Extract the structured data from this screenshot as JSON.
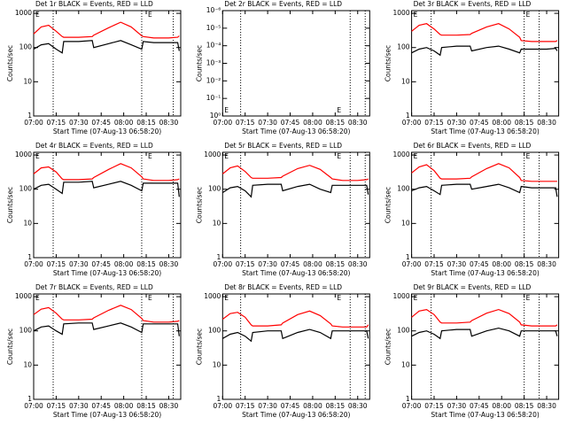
{
  "chart_data": [
    {
      "type": "line",
      "title": "Det 1r BLACK = Events, RED = LLD",
      "xlabel": "Start Time (07-Aug-13 06:58:20)",
      "ylabel": "Counts/sec",
      "log_y": true,
      "x": [
        "07:00",
        "07:05",
        "07:10",
        "07:15",
        "07:19",
        "07:20",
        "07:30",
        "07:39",
        "07:40",
        "07:50",
        "07:58",
        "08:05",
        "08:12",
        "08:13",
        "08:20",
        "08:30",
        "08:36",
        "08:37"
      ],
      "series": [
        {
          "name": "LLD",
          "color": "#ff0000",
          "values": [
            250,
            400,
            450,
            300,
            210,
            200,
            200,
            210,
            230,
            380,
            550,
            400,
            220,
            210,
            190,
            190,
            200,
            220
          ]
        },
        {
          "name": "Events",
          "color": "#000000",
          "values": [
            90,
            120,
            130,
            90,
            70,
            150,
            150,
            160,
            100,
            130,
            160,
            120,
            90,
            150,
            140,
            140,
            140,
            80
          ]
        }
      ],
      "xlim": [
        "07:00",
        "08:38"
      ],
      "xticks": [
        "07:00",
        "07:15",
        "07:30",
        "07:45",
        "08:00",
        "08:15",
        "08:30"
      ],
      "ylim": [
        1,
        1200
      ],
      "yticks": [
        1,
        10,
        100,
        1000
      ],
      "vlines": [
        "07:13",
        "08:12",
        "08:33"
      ],
      "annotations": [
        {
          "text": "E",
          "x": "07:00",
          "y": 1000
        },
        {
          "text": "E",
          "x": "08:15",
          "y": 1000
        }
      ]
    },
    {
      "type": "line",
      "title": "Det 2r BLACK = Events, RED = LLD",
      "xlabel": "Start Time (07-Aug-13 06:58:20)",
      "ylabel": "Counts/sec",
      "log_y": true,
      "x": [],
      "series": [],
      "xlim": [
        "07:00",
        "08:38"
      ],
      "xticks": [
        "07:00",
        "07:15",
        "07:30",
        "07:45",
        "08:00",
        "08:15",
        "08:30"
      ],
      "ylim": [
        1,
        1e-06
      ],
      "yticks": [
        {
          "value": 1e-06,
          "label": "10⁻⁶"
        },
        {
          "value": 1e-05,
          "label": "10⁻⁵"
        },
        {
          "value": 0.0001,
          "label": "10⁻⁴"
        },
        {
          "value": 0.001,
          "label": "10⁻³"
        },
        {
          "value": 0.01,
          "label": "10⁻²"
        },
        {
          "value": 0.1,
          "label": "10⁻¹"
        },
        {
          "value": 1,
          "label": "10⁰"
        }
      ],
      "vlines": [
        "07:12",
        "08:25",
        "08:35"
      ],
      "annotations": [
        {
          "text": "E",
          "x": "07:00",
          "y": 1
        },
        {
          "text": "E",
          "x": "08:15",
          "y": 1
        }
      ]
    },
    {
      "type": "line",
      "title": "Det 3r BLACK = Events, RED = LLD",
      "xlabel": "Start Time (07-Aug-13 06:58:20)",
      "ylabel": "Counts/sec",
      "log_y": true,
      "x": [
        "07:00",
        "07:05",
        "07:10",
        "07:15",
        "07:19",
        "07:20",
        "07:30",
        "07:39",
        "07:40",
        "07:50",
        "07:58",
        "08:05",
        "08:12",
        "08:13",
        "08:20",
        "08:30",
        "08:36",
        "08:37"
      ],
      "series": [
        {
          "name": "LLD",
          "color": "#ff0000",
          "values": [
            300,
            450,
            500,
            350,
            240,
            230,
            230,
            240,
            260,
            400,
            500,
            350,
            200,
            160,
            150,
            150,
            150,
            160
          ]
        },
        {
          "name": "Events",
          "color": "#000000",
          "values": [
            70,
            90,
            100,
            80,
            60,
            100,
            110,
            110,
            80,
            100,
            110,
            90,
            70,
            90,
            90,
            90,
            95,
            80
          ]
        }
      ],
      "xlim": [
        "07:00",
        "08:38"
      ],
      "xticks": [
        "07:00",
        "07:15",
        "07:30",
        "07:45",
        "08:00",
        "08:15",
        "08:30"
      ],
      "ylim": [
        1,
        1200
      ],
      "yticks": [
        1,
        10,
        100,
        1000
      ],
      "vlines": [
        "07:13",
        "08:15",
        "08:25"
      ],
      "annotations": [
        {
          "text": "E",
          "x": "07:00",
          "y": 1000
        },
        {
          "text": "E",
          "x": "08:15",
          "y": 1000
        }
      ]
    },
    {
      "type": "line",
      "title": "Det 4r BLACK = Events, RED = LLD",
      "xlabel": "Start Time (07-Aug-13 06:58:20)",
      "ylabel": "Counts/sec",
      "log_y": true,
      "x": [
        "07:00",
        "07:05",
        "07:10",
        "07:15",
        "07:19",
        "07:20",
        "07:30",
        "07:39",
        "07:40",
        "07:50",
        "07:58",
        "08:05",
        "08:12",
        "08:13",
        "08:20",
        "08:30",
        "08:36",
        "08:37"
      ],
      "series": [
        {
          "name": "LLD",
          "color": "#ff0000",
          "values": [
            280,
            420,
            450,
            320,
            200,
            190,
            190,
            200,
            220,
            380,
            560,
            420,
            230,
            200,
            180,
            180,
            190,
            200
          ]
        },
        {
          "name": "Events",
          "color": "#000000",
          "values": [
            100,
            130,
            140,
            100,
            75,
            160,
            160,
            170,
            110,
            140,
            170,
            130,
            90,
            150,
            150,
            150,
            150,
            60
          ]
        }
      ],
      "xlim": [
        "07:00",
        "08:38"
      ],
      "xticks": [
        "07:00",
        "07:15",
        "07:30",
        "07:45",
        "08:00",
        "08:15",
        "08:30"
      ],
      "ylim": [
        1,
        1200
      ],
      "yticks": [
        1,
        10,
        100,
        1000
      ],
      "vlines": [
        "07:13",
        "08:12",
        "08:33"
      ],
      "annotations": [
        {
          "text": "E",
          "x": "07:00",
          "y": 1000
        },
        {
          "text": "E",
          "x": "08:15",
          "y": 1000
        }
      ]
    },
    {
      "type": "line",
      "title": "Det 5r BLACK = Events, RED = LLD",
      "xlabel": "Start Time (07-Aug-13 06:58:20)",
      "ylabel": "Counts/sec",
      "log_y": true,
      "x": [
        "07:00",
        "07:05",
        "07:10",
        "07:15",
        "07:19",
        "07:20",
        "07:30",
        "07:39",
        "07:40",
        "07:50",
        "07:58",
        "08:05",
        "08:12",
        "08:13",
        "08:20",
        "08:30",
        "08:36",
        "08:37"
      ],
      "series": [
        {
          "name": "LLD",
          "color": "#ff0000",
          "values": [
            280,
            420,
            480,
            330,
            220,
            210,
            210,
            220,
            240,
            400,
            500,
            380,
            220,
            200,
            180,
            180,
            190,
            200
          ]
        },
        {
          "name": "Events",
          "color": "#000000",
          "values": [
            80,
            110,
            120,
            90,
            60,
            130,
            140,
            140,
            90,
            120,
            140,
            100,
            80,
            130,
            130,
            130,
            130,
            70
          ]
        }
      ],
      "xlim": [
        "07:00",
        "08:38"
      ],
      "xticks": [
        "07:00",
        "07:15",
        "07:30",
        "07:45",
        "08:00",
        "08:15",
        "08:30"
      ],
      "ylim": [
        1,
        1200
      ],
      "yticks": [
        1,
        10,
        100,
        1000
      ],
      "vlines": [
        "07:12",
        "08:25",
        "08:35"
      ],
      "annotations": [
        {
          "text": "E",
          "x": "07:00",
          "y": 1000
        },
        {
          "text": "E",
          "x": "08:15",
          "y": 1000
        }
      ]
    },
    {
      "type": "line",
      "title": "Det 6r BLACK = Events, RED = LLD",
      "xlabel": "Start Time (07-Aug-13 06:58:20)",
      "ylabel": "Counts/sec",
      "log_y": true,
      "x": [
        "07:00",
        "07:05",
        "07:10",
        "07:15",
        "07:19",
        "07:20",
        "07:30",
        "07:39",
        "07:40",
        "07:50",
        "07:58",
        "08:05",
        "08:12",
        "08:13",
        "08:20",
        "08:30",
        "08:36",
        "08:37"
      ],
      "series": [
        {
          "name": "LLD",
          "color": "#ff0000",
          "values": [
            300,
            450,
            520,
            350,
            210,
            200,
            200,
            210,
            230,
            400,
            560,
            420,
            220,
            180,
            170,
            170,
            170,
            170
          ]
        },
        {
          "name": "Events",
          "color": "#000000",
          "values": [
            90,
            110,
            120,
            90,
            70,
            130,
            140,
            140,
            100,
            120,
            140,
            110,
            80,
            120,
            110,
            110,
            110,
            60
          ]
        }
      ],
      "xlim": [
        "07:00",
        "08:38"
      ],
      "xticks": [
        "07:00",
        "07:15",
        "07:30",
        "07:45",
        "08:00",
        "08:15",
        "08:30"
      ],
      "ylim": [
        1,
        1200
      ],
      "yticks": [
        1,
        10,
        100,
        1000
      ],
      "vlines": [
        "07:13",
        "08:15",
        "08:25"
      ],
      "annotations": [
        {
          "text": "E",
          "x": "07:00",
          "y": 1000
        },
        {
          "text": "E",
          "x": "08:15",
          "y": 1000
        }
      ]
    },
    {
      "type": "line",
      "title": "Det 7r BLACK = Events, RED = LLD",
      "xlabel": "Start Time (07-Aug-13 06:58:20)",
      "ylabel": "Counts/sec",
      "log_y": true,
      "x": [
        "07:00",
        "07:05",
        "07:10",
        "07:15",
        "07:19",
        "07:20",
        "07:30",
        "07:39",
        "07:40",
        "07:50",
        "07:58",
        "08:05",
        "08:12",
        "08:13",
        "08:20",
        "08:30",
        "08:36",
        "08:37"
      ],
      "series": [
        {
          "name": "LLD",
          "color": "#ff0000",
          "values": [
            300,
            430,
            480,
            330,
            220,
            210,
            210,
            220,
            240,
            400,
            560,
            420,
            230,
            200,
            180,
            180,
            190,
            200
          ]
        },
        {
          "name": "Events",
          "color": "#000000",
          "values": [
            100,
            130,
            140,
            100,
            80,
            160,
            170,
            170,
            110,
            140,
            170,
            130,
            90,
            160,
            160,
            160,
            160,
            70
          ]
        }
      ],
      "xlim": [
        "07:00",
        "08:38"
      ],
      "xticks": [
        "07:00",
        "07:15",
        "07:30",
        "07:45",
        "08:00",
        "08:15",
        "08:30"
      ],
      "ylim": [
        1,
        1200
      ],
      "yticks": [
        1,
        10,
        100,
        1000
      ],
      "vlines": [
        "07:13",
        "08:12",
        "08:33"
      ],
      "annotations": [
        {
          "text": "E",
          "x": "07:00",
          "y": 1000
        },
        {
          "text": "E",
          "x": "08:15",
          "y": 1000
        }
      ]
    },
    {
      "type": "line",
      "title": "Det 8r BLACK = Events, RED = LLD",
      "xlabel": "Start Time (07-Aug-13 06:58:20)",
      "ylabel": "Counts/sec",
      "log_y": true,
      "x": [
        "07:00",
        "07:05",
        "07:10",
        "07:15",
        "07:19",
        "07:20",
        "07:30",
        "07:39",
        "07:40",
        "07:50",
        "07:58",
        "08:05",
        "08:12",
        "08:13",
        "08:20",
        "08:30",
        "08:36",
        "08:37"
      ],
      "series": [
        {
          "name": "LLD",
          "color": "#ff0000",
          "values": [
            220,
            320,
            350,
            250,
            150,
            140,
            140,
            150,
            170,
            300,
            380,
            280,
            160,
            140,
            130,
            130,
            130,
            150
          ]
        },
        {
          "name": "Events",
          "color": "#000000",
          "values": [
            60,
            80,
            90,
            70,
            50,
            90,
            100,
            100,
            60,
            90,
            110,
            90,
            60,
            100,
            100,
            100,
            100,
            60
          ]
        }
      ],
      "xlim": [
        "07:00",
        "08:38"
      ],
      "xticks": [
        "07:00",
        "07:15",
        "07:30",
        "07:45",
        "08:00",
        "08:15",
        "08:30"
      ],
      "ylim": [
        1,
        1200
      ],
      "yticks": [
        1,
        10,
        100,
        1000
      ],
      "vlines": [
        "07:12",
        "08:25",
        "08:35"
      ],
      "annotations": [
        {
          "text": "E",
          "x": "07:00",
          "y": 1000
        },
        {
          "text": "E",
          "x": "08:15",
          "y": 1000
        }
      ]
    },
    {
      "type": "line",
      "title": "Det 9r BLACK = Events, RED = LLD",
      "xlabel": "Start Time (07-Aug-13 06:58:20)",
      "ylabel": "Counts/sec",
      "log_y": true,
      "x": [
        "07:00",
        "07:05",
        "07:10",
        "07:15",
        "07:19",
        "07:20",
        "07:30",
        "07:39",
        "07:40",
        "07:50",
        "07:58",
        "08:05",
        "08:12",
        "08:13",
        "08:20",
        "08:30",
        "08:36",
        "08:37"
      ],
      "series": [
        {
          "name": "LLD",
          "color": "#ff0000",
          "values": [
            250,
            380,
            420,
            300,
            180,
            170,
            170,
            180,
            200,
            330,
            420,
            320,
            180,
            150,
            140,
            140,
            140,
            150
          ]
        },
        {
          "name": "Events",
          "color": "#000000",
          "values": [
            70,
            90,
            100,
            80,
            60,
            100,
            110,
            110,
            70,
            100,
            120,
            100,
            70,
            100,
            100,
            100,
            100,
            70
          ]
        }
      ],
      "xlim": [
        "07:00",
        "08:38"
      ],
      "xticks": [
        "07:00",
        "07:15",
        "07:30",
        "07:45",
        "08:00",
        "08:15",
        "08:30"
      ],
      "ylim": [
        1,
        1200
      ],
      "yticks": [
        1,
        10,
        100,
        1000
      ],
      "vlines": [
        "07:13",
        "08:15",
        "08:25"
      ],
      "annotations": [
        {
          "text": "E",
          "x": "07:00",
          "y": 1000
        },
        {
          "text": "E",
          "x": "08:15",
          "y": 1000
        }
      ]
    }
  ]
}
